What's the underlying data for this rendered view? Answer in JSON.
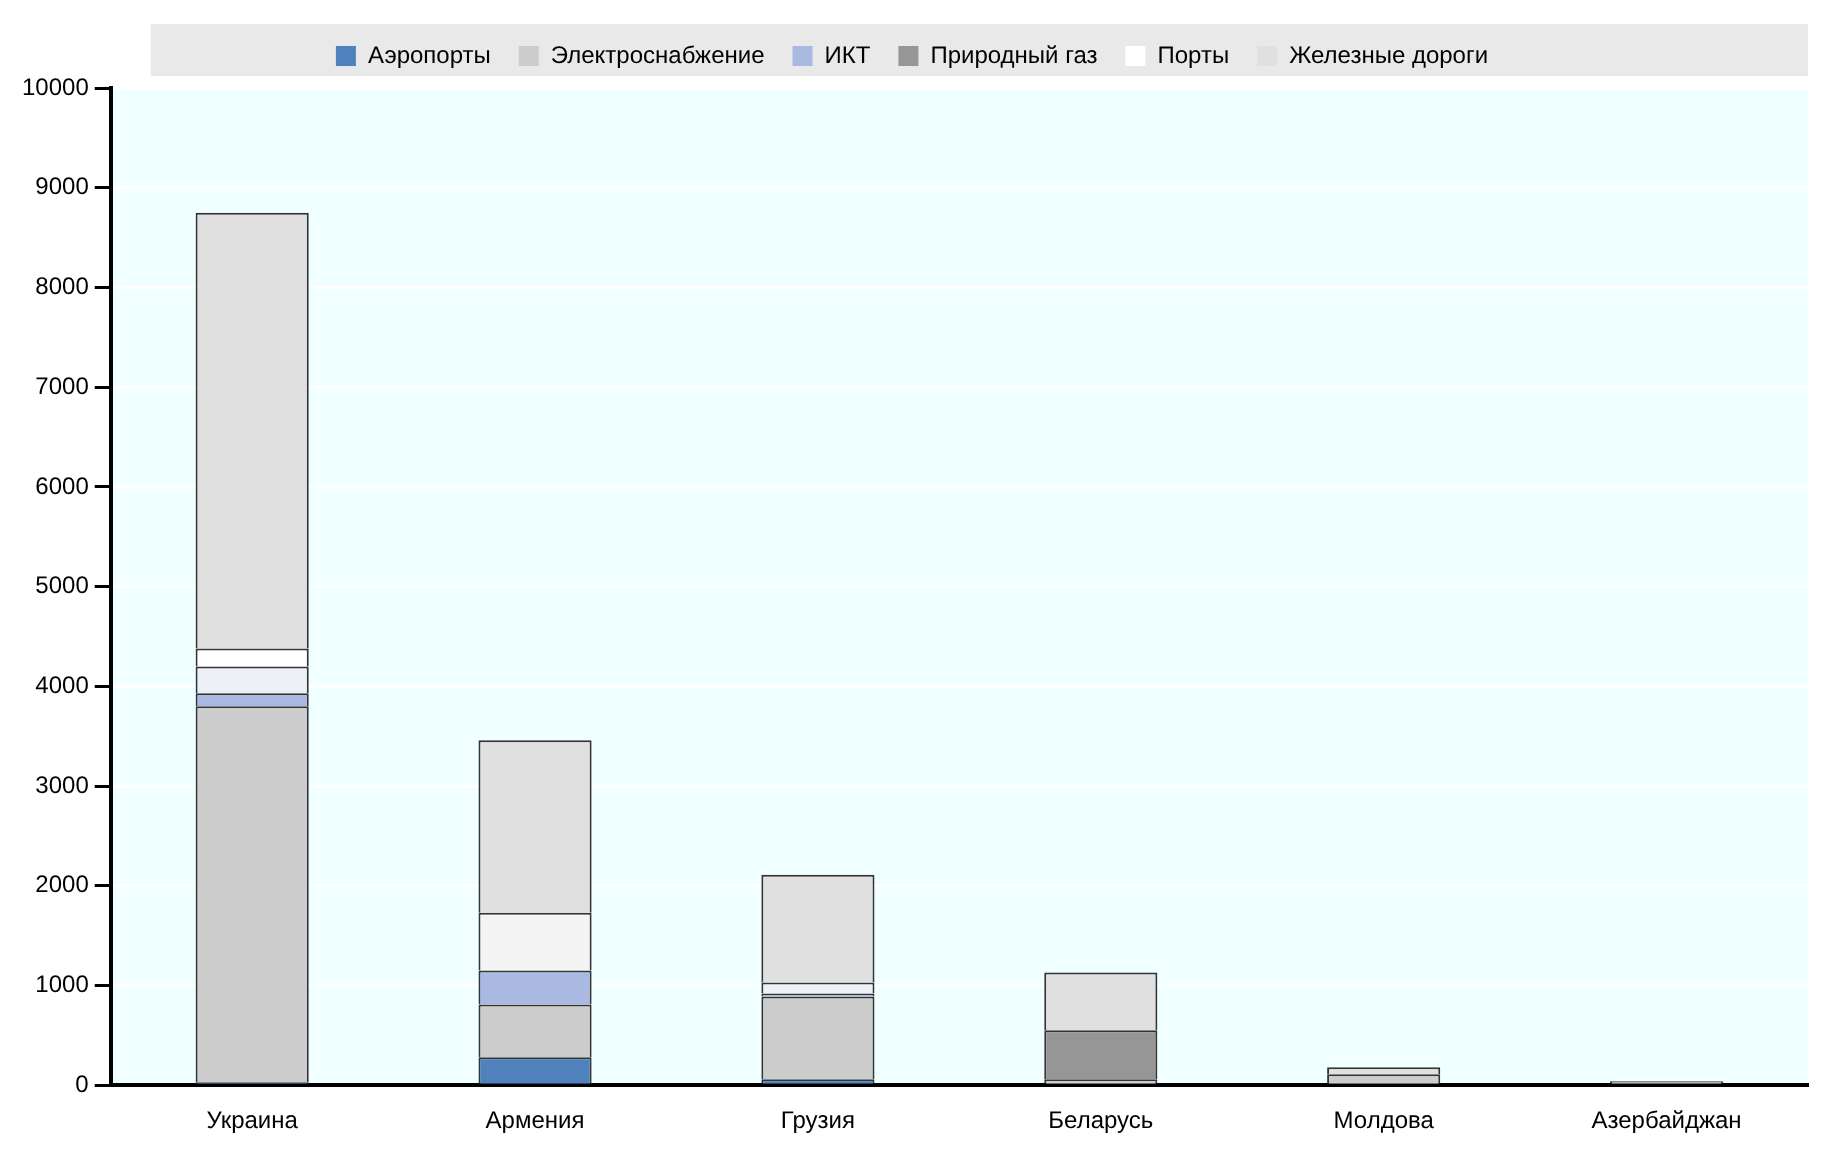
{
  "chart_data": {
    "type": "bar",
    "stacked": true,
    "categories": [
      "Украина",
      "Армения",
      "Грузия",
      "Беларусь",
      "Молдова",
      "Азербайджан"
    ],
    "series": [
      {
        "name": "Аэропорты",
        "color": "#4f81bd",
        "values": [
          30,
          280,
          60,
          null,
          null,
          null
        ]
      },
      {
        "name": "Электроснабжение",
        "color": "#cccccc",
        "values": [
          3770,
          530,
          830,
          60,
          110,
          40
        ]
      },
      {
        "name": "ИКТ",
        "color": "#a9b9e2",
        "values": [
          130,
          340,
          30,
          null,
          null,
          null
        ]
      },
      {
        "name": "Природный газ",
        "color": "#969696",
        "values": [
          null,
          null,
          null,
          490,
          null,
          null
        ]
      },
      {
        "color": "#eef0f8",
        "values": [
          270,
          null,
          110,
          null,
          null,
          null
        ]
      },
      {
        "name": "Порты",
        "color": "#ffffff",
        "values": [
          180,
          null,
          null,
          null,
          null,
          null
        ]
      },
      {
        "color": "#f4f4f4",
        "values": [
          null,
          580,
          null,
          null,
          null,
          null
        ]
      },
      {
        "name": "Железные дороги",
        "color": "#e0e0e0",
        "values": [
          4370,
          1730,
          1080,
          580,
          70,
          null
        ]
      }
    ],
    "ylim": [
      0,
      10000
    ],
    "yticks": [
      0,
      1000,
      2000,
      3000,
      4000,
      5000,
      6000,
      7000,
      8000,
      9000,
      10000
    ],
    "grid": "y",
    "legend": "top"
  }
}
